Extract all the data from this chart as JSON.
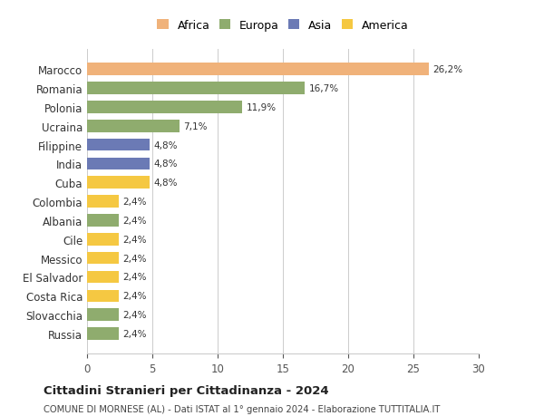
{
  "countries": [
    "Russia",
    "Slovacchia",
    "Costa Rica",
    "El Salvador",
    "Messico",
    "Cile",
    "Albania",
    "Colombia",
    "Cuba",
    "India",
    "Filippine",
    "Ucraina",
    "Polonia",
    "Romania",
    "Marocco"
  ],
  "values": [
    2.4,
    2.4,
    2.4,
    2.4,
    2.4,
    2.4,
    2.4,
    2.4,
    4.8,
    4.8,
    4.8,
    7.1,
    11.9,
    16.7,
    26.2
  ],
  "labels": [
    "2,4%",
    "2,4%",
    "2,4%",
    "2,4%",
    "2,4%",
    "2,4%",
    "2,4%",
    "2,4%",
    "4,8%",
    "4,8%",
    "4,8%",
    "7,1%",
    "11,9%",
    "16,7%",
    "26,2%"
  ],
  "colors": [
    "#8fac6e",
    "#8fac6e",
    "#f5c842",
    "#f5c842",
    "#f5c842",
    "#f5c842",
    "#8fac6e",
    "#f5c842",
    "#f5c842",
    "#6b7ab5",
    "#6b7ab5",
    "#8fac6e",
    "#8fac6e",
    "#8fac6e",
    "#f0b27a"
  ],
  "legend_labels": [
    "Africa",
    "Europa",
    "Asia",
    "America"
  ],
  "legend_colors": [
    "#f0b27a",
    "#8fac6e",
    "#6b7ab5",
    "#f5c842"
  ],
  "title": "Cittadini Stranieri per Cittadinanza - 2024",
  "subtitle": "COMUNE DI MORNESE (AL) - Dati ISTAT al 1° gennaio 2024 - Elaborazione TUTTITALIA.IT",
  "xlim": [
    0,
    30
  ],
  "xticks": [
    0,
    5,
    10,
    15,
    20,
    25,
    30
  ],
  "background_color": "#ffffff",
  "grid_color": "#cccccc"
}
